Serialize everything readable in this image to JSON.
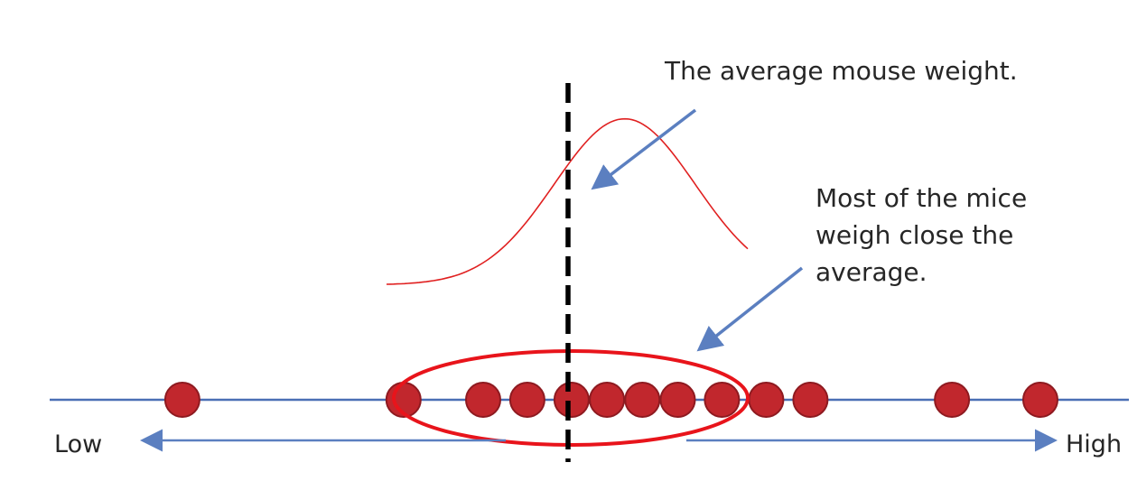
{
  "annotations": {
    "average": "The average mouse weight.",
    "cluster_lines": [
      "Most of the mice",
      "weigh close the",
      "average."
    ]
  },
  "axis": {
    "low_label": "Low",
    "high_label": "High"
  },
  "chart_data": {
    "type": "scatter",
    "points": [
      1.5,
      4.0,
      4.9,
      5.4,
      5.9,
      6.3,
      6.7,
      7.1,
      7.6,
      8.1,
      8.6,
      10.2,
      11.2
    ],
    "mean": 6.5,
    "highlighted_range": [
      4.9,
      8.1
    ],
    "curve": "normal"
  },
  "colors": {
    "axis_line": "#4a6fb5",
    "point_fill": "#c1272d",
    "point_stroke": "#8e1a20",
    "curve": "#e02020",
    "ellipse": "#e8141b",
    "mean_line": "#000000",
    "arrow": "#5b7fc0"
  }
}
